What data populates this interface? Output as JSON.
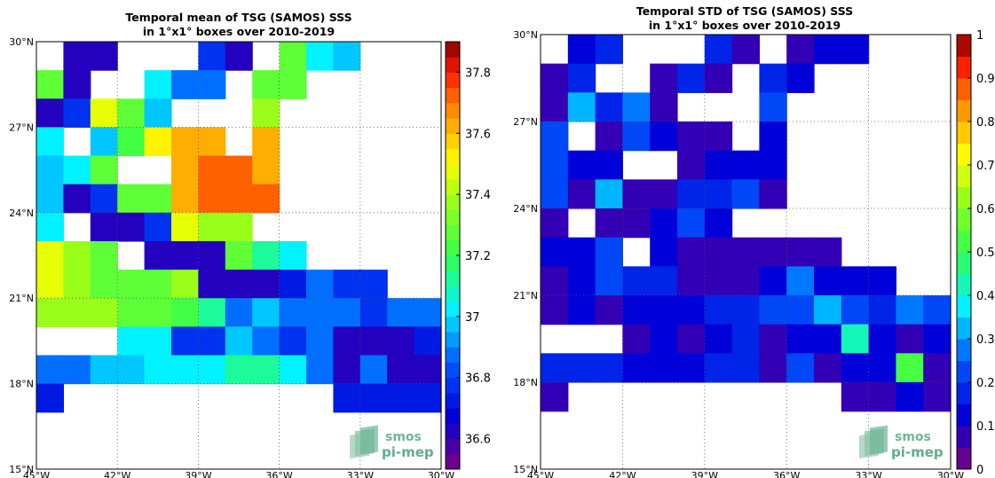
{
  "chart_data": [
    {
      "type": "heatmap",
      "title": "Temporal mean of TSG (SAMOS) SSS\nin 1°x1° boxes over 2010-2019",
      "title_lines": [
        "Temporal mean of TSG (SAMOS) SSS",
        "in 1°x1° boxes over 2010-2019"
      ],
      "xlabel": "",
      "ylabel": "",
      "x_ticks": [
        "45°W",
        "42°W",
        "39°W",
        "36°W",
        "33°W",
        "30°W"
      ],
      "y_ticks": [
        "30°N",
        "27°N",
        "24°N",
        "21°N",
        "18°N",
        "15°N"
      ],
      "xlim_lon": [
        -45,
        -30
      ],
      "ylim_lat": [
        15,
        30
      ],
      "grid": true,
      "colorbar": {
        "min": 36.5,
        "max": 37.9,
        "levels": 28,
        "ticks": [
          "36.6",
          "36.8",
          "37",
          "37.2",
          "37.4",
          "37.6",
          "37.8"
        ],
        "tick_values": [
          36.6,
          36.8,
          37.0,
          37.2,
          37.4,
          37.6,
          37.8
        ]
      },
      "cells_note": "rows from 30°N (top) southward; each row lists values per 1° longitude from 45°W eastward; null = no data",
      "cells": [
        [
          null,
          36.6,
          36.6,
          null,
          null,
          null,
          36.8,
          36.6,
          null,
          37.3,
          37.0,
          36.95
        ],
        [
          37.3,
          36.6,
          null,
          null,
          37.0,
          36.85,
          36.85,
          null,
          37.3,
          37.3
        ],
        [
          36.6,
          36.8,
          37.45,
          37.3,
          36.95,
          null,
          null,
          null,
          37.35
        ],
        [
          37.0,
          null,
          36.95,
          37.2,
          37.5,
          37.65,
          37.65,
          null,
          37.65
        ],
        [
          36.95,
          37.0,
          37.3,
          null,
          null,
          37.65,
          37.7,
          37.7,
          37.65
        ],
        [
          36.95,
          36.6,
          36.8,
          37.25,
          37.3,
          37.65,
          37.7,
          37.7,
          37.7
        ],
        [
          37.0,
          null,
          36.6,
          36.6,
          36.75,
          37.45,
          37.35,
          37.35
        ],
        [
          37.45,
          37.35,
          37.3,
          null,
          36.6,
          36.6,
          36.6,
          37.25,
          37.15,
          37.0
        ],
        [
          37.45,
          37.35,
          37.25,
          37.25,
          37.25,
          37.35,
          36.6,
          36.6,
          36.6,
          36.7,
          36.9,
          36.75,
          36.8
        ],
        [
          37.35,
          37.35,
          37.35,
          37.25,
          37.3,
          37.2,
          37.15,
          36.9,
          36.95,
          36.85,
          36.85,
          36.85,
          36.8,
          36.85,
          36.85
        ],
        [
          null,
          null,
          null,
          37.0,
          37.0,
          36.8,
          36.8,
          36.95,
          36.85,
          36.8,
          36.85,
          36.6,
          36.6,
          36.6,
          36.7
        ],
        [
          36.85,
          36.9,
          36.95,
          36.95,
          37.0,
          37.0,
          37.0,
          37.1,
          37.1,
          37.0,
          36.9,
          36.65,
          36.85,
          36.6,
          36.6
        ],
        [
          36.7,
          null,
          null,
          null,
          null,
          null,
          null,
          null,
          null,
          null,
          null,
          36.7,
          36.7,
          36.7,
          36.7
        ]
      ]
    },
    {
      "type": "heatmap",
      "title": "Temporal STD of TSG (SAMOS) SSS\nin 1°x1° boxes over 2010-2019",
      "title_lines": [
        "Temporal STD of TSG (SAMOS) SSS",
        "in 1°x1° boxes over 2010-2019"
      ],
      "xlabel": "",
      "ylabel": "",
      "x_ticks": [
        "45°W",
        "42°W",
        "39°W",
        "36°W",
        "33°W",
        "30°W"
      ],
      "y_ticks": [
        "30°N",
        "27°N",
        "24°N",
        "21°N",
        "18°N",
        "15°N"
      ],
      "xlim_lon": [
        -45,
        -30
      ],
      "ylim_lat": [
        15,
        30
      ],
      "grid": true,
      "colorbar": {
        "min": 0,
        "max": 1,
        "levels": 20,
        "ticks": [
          "0",
          "0.1",
          "0.2",
          "0.3",
          "0.4",
          "0.5",
          "0.6",
          "0.7",
          "0.8",
          "0.9",
          "1"
        ],
        "tick_values": [
          0,
          0.1,
          0.2,
          0.3,
          0.4,
          0.5,
          0.6,
          0.7,
          0.8,
          0.9,
          1.0
        ]
      },
      "cells_note": "rows from 30°N (top) southward; each row lists values per 1° longitude from 45°W eastward; null = no data",
      "cells": [
        [
          null,
          0.1,
          0.15,
          null,
          null,
          null,
          0.15,
          0.05,
          null,
          0.05,
          0.1,
          0.1
        ],
        [
          0.05,
          0.15,
          null,
          null,
          0.05,
          0.15,
          0.05,
          null,
          0.15,
          0.1
        ],
        [
          0.05,
          0.3,
          0.15,
          0.28,
          0.05,
          null,
          null,
          null,
          0.2
        ],
        [
          0.2,
          null,
          0.05,
          0.2,
          0.1,
          0.05,
          0.05,
          null,
          0.1
        ],
        [
          0.2,
          0.1,
          0.1,
          null,
          null,
          0.05,
          0.1,
          0.1,
          0.1
        ],
        [
          0.22,
          0.05,
          0.3,
          0.05,
          0.05,
          0.15,
          0.15,
          0.2,
          0.05
        ],
        [
          0.05,
          null,
          0.05,
          0.05,
          0.1,
          0.2,
          0.1
        ],
        [
          0.1,
          0.1,
          0.2,
          null,
          0.1,
          0.05,
          0.05,
          0.05,
          0.05,
          0.05,
          0.05
        ],
        [
          0.05,
          0.1,
          0.2,
          0.15,
          0.15,
          0.05,
          0.05,
          0.05,
          0.1,
          0.25,
          0.1,
          0.1,
          0.1
        ],
        [
          0.05,
          0.1,
          0.05,
          0.1,
          0.1,
          0.1,
          0.15,
          0.15,
          0.2,
          0.2,
          0.3,
          0.2,
          0.15,
          0.25,
          0.2
        ],
        [
          null,
          null,
          null,
          0.05,
          0.1,
          0.05,
          0.1,
          0.15,
          0.05,
          0.1,
          0.1,
          0.4,
          0.1,
          0.05,
          0.1
        ],
        [
          0.15,
          0.15,
          0.15,
          0.1,
          0.1,
          0.1,
          0.15,
          0.15,
          0.05,
          0.2,
          0.05,
          0.1,
          0.1,
          0.5,
          0.05
        ],
        [
          0.05,
          null,
          null,
          null,
          null,
          null,
          null,
          null,
          null,
          null,
          null,
          0.05,
          0.05,
          0.1,
          0.05
        ]
      ]
    }
  ],
  "watermark": {
    "line1": "smos",
    "line2": "pi-mep",
    "color": "#5fae8c"
  }
}
